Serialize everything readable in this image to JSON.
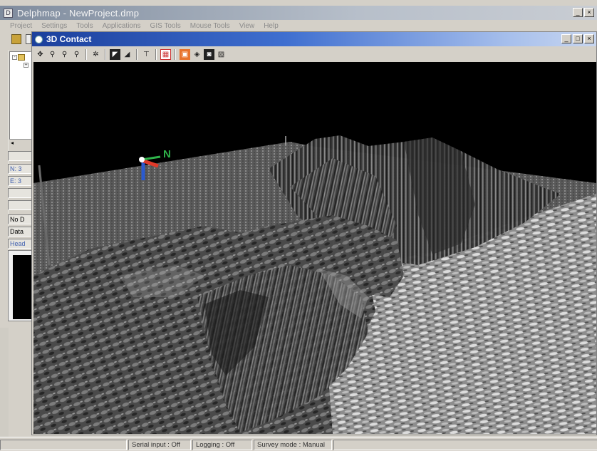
{
  "window": {
    "title": "Delphmap - NewProject.dmp",
    "icon": "app-icon"
  },
  "menu": {
    "items": [
      "Project",
      "Settings",
      "Tools",
      "Applications",
      "GIS Tools",
      "Mouse Tools",
      "View",
      "Help"
    ]
  },
  "left_panel": {
    "fields": [
      "N: 3",
      "E: 3",
      "",
      "",
      "No D",
      "Data",
      "Head"
    ]
  },
  "child_window": {
    "title": "3D Contact",
    "toolbar": [
      {
        "name": "pan-tool-icon",
        "glyph": "✥"
      },
      {
        "name": "zoom-icon",
        "glyph": "⚲"
      },
      {
        "name": "zoom-in-icon",
        "glyph": "⚲"
      },
      {
        "name": "zoom-out-icon",
        "glyph": "⚲"
      },
      {
        "name": "center-icon",
        "glyph": "✲"
      },
      {
        "name": "shading-icon",
        "glyph": "◤"
      },
      {
        "name": "gradient-icon",
        "glyph": "◢"
      },
      {
        "name": "vertical-exaggeration-icon",
        "glyph": "⊤"
      },
      {
        "name": "palette-icon",
        "glyph": "▦"
      },
      {
        "name": "snapshot-icon",
        "glyph": "▣"
      },
      {
        "name": "rotate-icon",
        "glyph": "◈"
      },
      {
        "name": "camera-icon",
        "glyph": "◙"
      },
      {
        "name": "export-icon",
        "glyph": "▧"
      }
    ],
    "north_label": "N"
  },
  "status": {
    "serial": "Serial input : Off",
    "logging": "Logging : Off",
    "survey": "Survey mode : Manual"
  },
  "colors": {
    "child_title": "#1b3f9c",
    "viewport_bg": "#000000",
    "north_marker": "#2fb24a",
    "axis_red": "#e03a2a",
    "axis_blue": "#2a5ad0"
  }
}
